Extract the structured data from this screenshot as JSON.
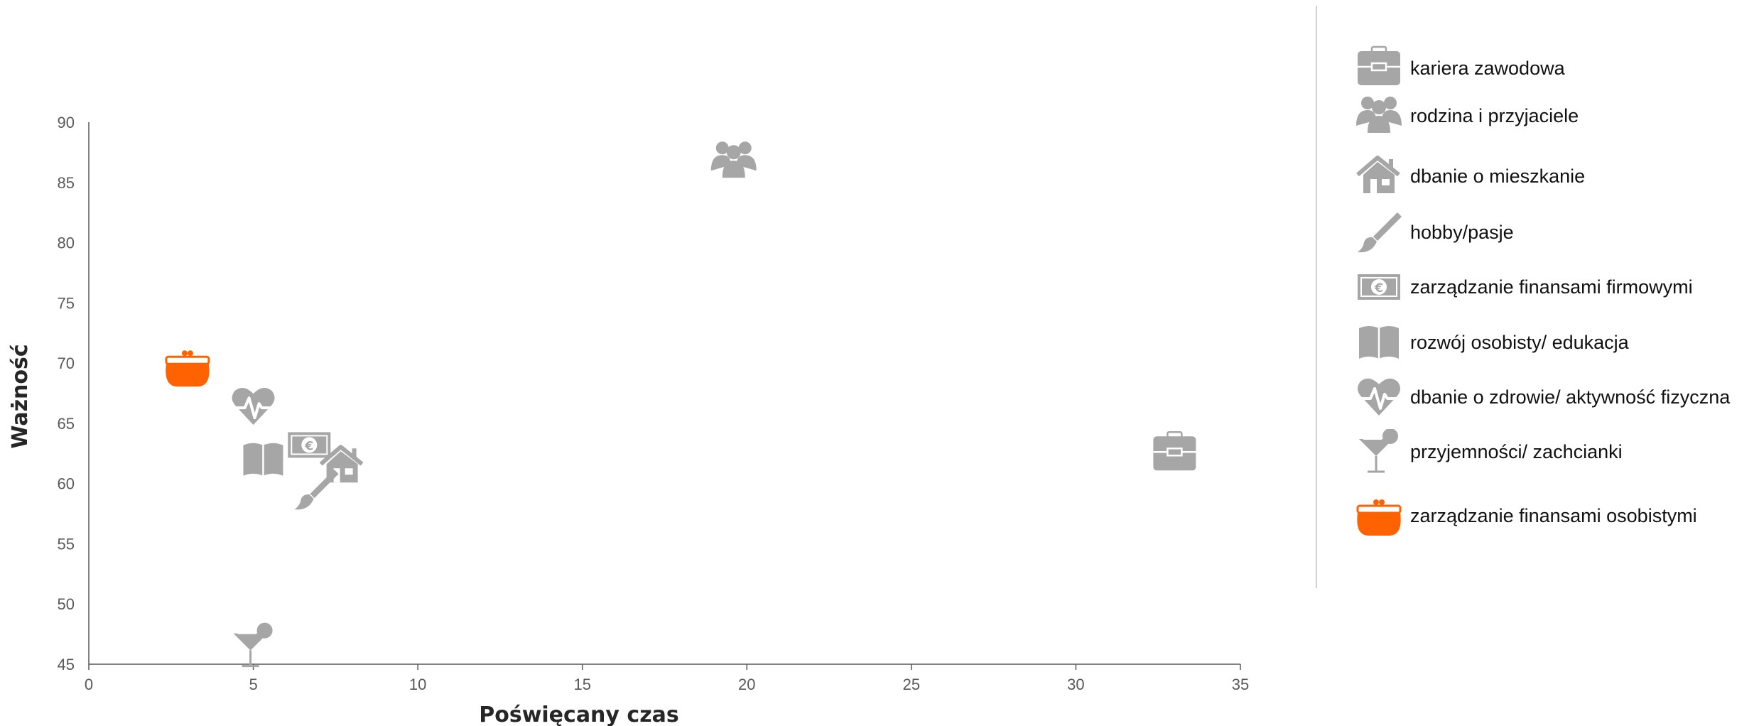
{
  "chart_data": {
    "type": "scatter",
    "xlabel": "Poświęcany czas",
    "ylabel": "Ważność",
    "xlim": [
      0,
      35
    ],
    "ylim": [
      45,
      90
    ],
    "xticks": [
      "0",
      "5",
      "10",
      "15",
      "20",
      "25",
      "30",
      "35"
    ],
    "yticks": [
      "45",
      "50",
      "55",
      "60",
      "65",
      "70",
      "75",
      "80",
      "85",
      "90"
    ],
    "grid": false,
    "legend_position": "right",
    "series": [
      {
        "name": "kariera zawodowa",
        "icon": "briefcase-icon",
        "color": "#a6a6a6",
        "x": 33.0,
        "y": 62.5
      },
      {
        "name": "rodzina i przyjaciele",
        "icon": "family-icon",
        "color": "#a6a6a6",
        "x": 19.6,
        "y": 86.8
      },
      {
        "name": "dbanie o mieszkanie",
        "icon": "house-icon",
        "color": "#a6a6a6",
        "x": 7.7,
        "y": 61.5
      },
      {
        "name": "hobby/pasje",
        "icon": "paintbrush-icon",
        "color": "#a6a6a6",
        "x": 6.9,
        "y": 59.5
      },
      {
        "name": "zarządzanie finansami firmowymi",
        "icon": "euro-banknote-icon",
        "color": "#a6a6a6",
        "x": 6.7,
        "y": 63.2
      },
      {
        "name": "rozwój osobisty/ edukacja",
        "icon": "book-icon",
        "color": "#a6a6a6",
        "x": 5.3,
        "y": 62.0
      },
      {
        "name": "dbanie o zdrowie/ aktywność fizyczna",
        "icon": "heart-pulse-icon",
        "color": "#a6a6a6",
        "x": 5.0,
        "y": 66.4
      },
      {
        "name": "przyjemności/ zachcianki",
        "icon": "cocktail-icon",
        "color": "#a6a6a6",
        "x": 5.0,
        "y": 46.5
      },
      {
        "name": "zarządzanie finansami osobistymi",
        "icon": "purse-icon",
        "color": "#ff6200",
        "x": 3.0,
        "y": 69.7
      }
    ]
  }
}
